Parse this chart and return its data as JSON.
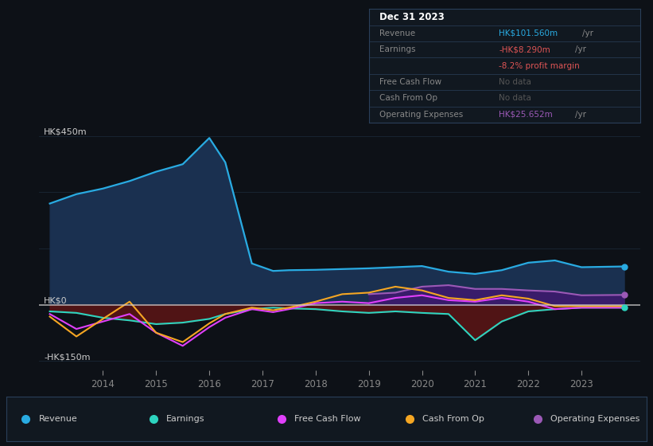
{
  "bg_color": "#0d1117",
  "plot_bg_color": "#0d1117",
  "grid_color": "#1c2d3d",
  "years": [
    2013.0,
    2013.5,
    2014.0,
    2014.5,
    2015.0,
    2015.5,
    2016.0,
    2016.3,
    2016.8,
    2017.2,
    2017.5,
    2018.0,
    2018.5,
    2019.0,
    2019.5,
    2020.0,
    2020.5,
    2021.0,
    2021.5,
    2022.0,
    2022.5,
    2023.0,
    2023.8
  ],
  "revenue": [
    270,
    295,
    310,
    330,
    355,
    375,
    445,
    380,
    110,
    90,
    92,
    93,
    95,
    97,
    100,
    103,
    88,
    82,
    92,
    112,
    118,
    100,
    102
  ],
  "revenue_color": "#29abe2",
  "revenue_fill_color": "#1a3050",
  "earnings": [
    -18,
    -22,
    -35,
    -42,
    -52,
    -48,
    -38,
    -25,
    -12,
    -8,
    -10,
    -12,
    -18,
    -22,
    -18,
    -22,
    -25,
    -95,
    -45,
    -18,
    -12,
    -8,
    -8
  ],
  "earnings_color": "#2dd4bf",
  "earnings_fill_color": "#5c1515",
  "free_cash_flow": [
    -25,
    -65,
    -45,
    -25,
    -75,
    -110,
    -60,
    -35,
    -12,
    -20,
    -12,
    4,
    8,
    4,
    18,
    25,
    12,
    8,
    18,
    8,
    -12,
    -8,
    -8
  ],
  "free_cash_flow_color": "#e040fb",
  "cash_from_op": [
    -32,
    -85,
    -38,
    8,
    -75,
    -100,
    -50,
    -25,
    -8,
    -15,
    -8,
    8,
    28,
    32,
    48,
    38,
    18,
    12,
    25,
    16,
    -4,
    -4,
    -4
  ],
  "cash_from_op_color": "#f5a623",
  "op_expenses_years": [
    2019.0,
    2019.5,
    2020.0,
    2020.5,
    2021.0,
    2021.5,
    2022.0,
    2022.5,
    2023.0,
    2023.8
  ],
  "op_expenses": [
    28,
    32,
    48,
    52,
    42,
    42,
    38,
    35,
    25,
    26
  ],
  "op_expenses_color": "#9b59b6",
  "op_expenses_fill_color": "#3d1a6e",
  "ylim": [
    -175,
    480
  ],
  "xlim": [
    2012.8,
    2024.1
  ],
  "xticks": [
    2014,
    2015,
    2016,
    2017,
    2018,
    2019,
    2020,
    2021,
    2022,
    2023
  ],
  "ylabel_top": "HK$450m",
  "ylabel_zero": "HK$0",
  "ylabel_bottom": "-HK$150m",
  "tooltip_title": "Dec 31 2023",
  "tooltip_revenue_label": "Revenue",
  "tooltip_revenue_val": "HK$101.560m",
  "tooltip_earnings_label": "Earnings",
  "tooltip_earnings_val": "-HK$8.290m",
  "tooltip_earnings_pct": "-8.2% profit margin",
  "tooltip_fcf_label": "Free Cash Flow",
  "tooltip_fcf_val": "No data",
  "tooltip_cfo_label": "Cash From Op",
  "tooltip_cfo_val": "No data",
  "tooltip_opex_label": "Operating Expenses",
  "tooltip_opex_val": "HK$25.652m",
  "legend_items": [
    "Revenue",
    "Earnings",
    "Free Cash Flow",
    "Cash From Op",
    "Operating Expenses"
  ],
  "legend_colors": [
    "#29abe2",
    "#2dd4bf",
    "#e040fb",
    "#f5a623",
    "#9b59b6"
  ]
}
